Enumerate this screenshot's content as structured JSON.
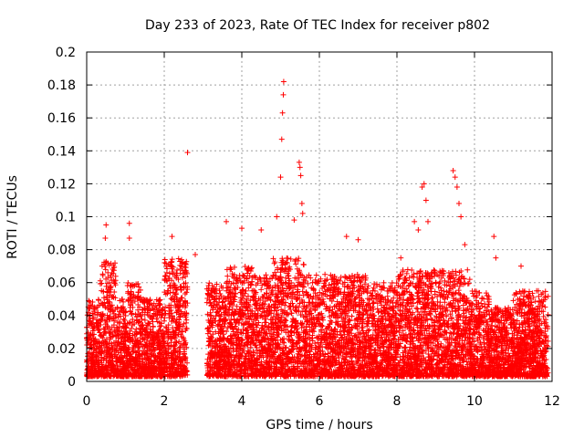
{
  "chart_data": {
    "type": "scatter",
    "title": "Day 233 of 2023, Rate Of TEC Index for receiver p802",
    "xlabel": "GPS time / hours",
    "ylabel": "ROTI / TECUs",
    "xlim": [
      0,
      12
    ],
    "ylim": [
      0,
      0.2
    ],
    "xticks": [
      0,
      2,
      4,
      6,
      8,
      10,
      12
    ],
    "xtick_labels": [
      "0",
      "2",
      "4",
      "6",
      "8",
      "10",
      "12"
    ],
    "yticks": [
      0,
      0.02,
      0.04,
      0.06,
      0.08,
      0.1,
      0.12,
      0.14,
      0.16,
      0.18,
      0.2
    ],
    "ytick_labels": [
      "0",
      "0.02",
      "0.04",
      "0.06",
      "0.08",
      "0.1",
      "0.12",
      "0.14",
      "0.16",
      "0.18",
      "0.2"
    ],
    "grid": true,
    "marker": "plus",
    "series": [
      {
        "name": "ROTI",
        "color": "#ff0000",
        "density": [
          {
            "x_start": 0.0,
            "x_end": 0.35,
            "ymax": 0.05
          },
          {
            "x_start": 0.35,
            "x_end": 0.75,
            "ymax": 0.073
          },
          {
            "x_start": 0.75,
            "x_end": 1.05,
            "ymax": 0.05
          },
          {
            "x_start": 1.05,
            "x_end": 1.4,
            "ymax": 0.06
          },
          {
            "x_start": 1.4,
            "x_end": 2.0,
            "ymax": 0.05
          },
          {
            "x_start": 2.0,
            "x_end": 2.6,
            "ymax": 0.075
          },
          {
            "x_start": 3.1,
            "x_end": 3.6,
            "ymax": 0.06
          },
          {
            "x_start": 3.6,
            "x_end": 4.3,
            "ymax": 0.07
          },
          {
            "x_start": 4.3,
            "x_end": 4.8,
            "ymax": 0.065
          },
          {
            "x_start": 4.8,
            "x_end": 5.6,
            "ymax": 0.075
          },
          {
            "x_start": 5.6,
            "x_end": 7.2,
            "ymax": 0.065
          },
          {
            "x_start": 7.2,
            "x_end": 8.0,
            "ymax": 0.06
          },
          {
            "x_start": 8.0,
            "x_end": 9.9,
            "ymax": 0.068
          },
          {
            "x_start": 9.9,
            "x_end": 10.4,
            "ymax": 0.055
          },
          {
            "x_start": 10.4,
            "x_end": 11.0,
            "ymax": 0.045
          },
          {
            "x_start": 11.0,
            "x_end": 11.9,
            "ymax": 0.055
          }
        ],
        "peaks": [
          {
            "x": 0.5,
            "y": 0.095
          },
          {
            "x": 0.48,
            "y": 0.087
          },
          {
            "x": 1.1,
            "y": 0.096
          },
          {
            "x": 1.1,
            "y": 0.087
          },
          {
            "x": 2.6,
            "y": 0.139
          },
          {
            "x": 2.2,
            "y": 0.088
          },
          {
            "x": 2.8,
            "y": 0.077
          },
          {
            "x": 3.6,
            "y": 0.097
          },
          {
            "x": 4.0,
            "y": 0.093
          },
          {
            "x": 4.5,
            "y": 0.092
          },
          {
            "x": 4.9,
            "y": 0.1
          },
          {
            "x": 5.0,
            "y": 0.124
          },
          {
            "x": 5.03,
            "y": 0.147
          },
          {
            "x": 5.05,
            "y": 0.163
          },
          {
            "x": 5.07,
            "y": 0.174
          },
          {
            "x": 5.08,
            "y": 0.182
          },
          {
            "x": 5.35,
            "y": 0.098
          },
          {
            "x": 5.48,
            "y": 0.133
          },
          {
            "x": 5.5,
            "y": 0.13
          },
          {
            "x": 5.52,
            "y": 0.125
          },
          {
            "x": 5.55,
            "y": 0.108
          },
          {
            "x": 5.57,
            "y": 0.102
          },
          {
            "x": 6.7,
            "y": 0.088
          },
          {
            "x": 7.0,
            "y": 0.086
          },
          {
            "x": 8.1,
            "y": 0.075
          },
          {
            "x": 8.45,
            "y": 0.097
          },
          {
            "x": 8.55,
            "y": 0.092
          },
          {
            "x": 8.65,
            "y": 0.118
          },
          {
            "x": 8.7,
            "y": 0.12
          },
          {
            "x": 8.75,
            "y": 0.11
          },
          {
            "x": 8.8,
            "y": 0.097
          },
          {
            "x": 9.45,
            "y": 0.128
          },
          {
            "x": 9.5,
            "y": 0.124
          },
          {
            "x": 9.55,
            "y": 0.118
          },
          {
            "x": 9.6,
            "y": 0.108
          },
          {
            "x": 9.65,
            "y": 0.1
          },
          {
            "x": 9.75,
            "y": 0.083
          },
          {
            "x": 10.5,
            "y": 0.088
          },
          {
            "x": 10.55,
            "y": 0.075
          },
          {
            "x": 11.2,
            "y": 0.07
          }
        ]
      }
    ]
  }
}
